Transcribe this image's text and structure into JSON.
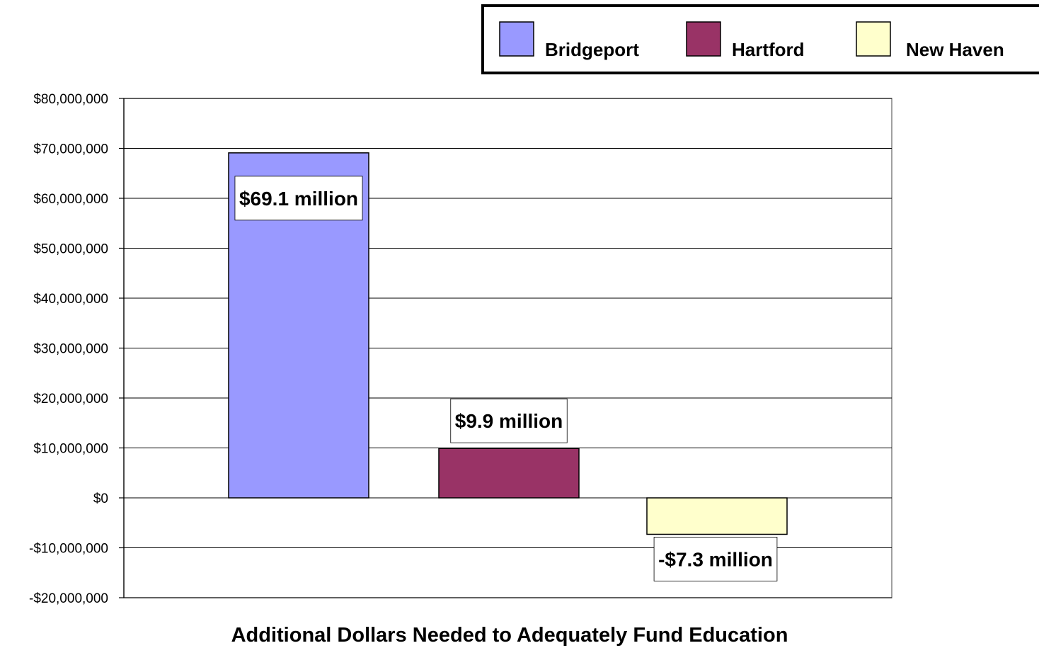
{
  "chart_data": {
    "type": "bar",
    "title": "",
    "xlabel": "Additional Dollars Needed to Adequately Fund Education",
    "ylabel": "",
    "ylim": [
      -20000000,
      80000000
    ],
    "yticks": [
      80000000,
      70000000,
      60000000,
      50000000,
      40000000,
      30000000,
      20000000,
      10000000,
      0,
      -10000000,
      -20000000
    ],
    "ytick_labels": [
      "$80,000,000",
      "$70,000,000",
      "$60,000,000",
      "$50,000,000",
      "$40,000,000",
      "$30,000,000",
      "$20,000,000",
      "$10,000,000",
      "$0",
      "-$10,000,000",
      "-$20,000,000"
    ],
    "grid": true,
    "legend_position": "top-right",
    "series": [
      {
        "name": "Bridgeport",
        "value": 69100000,
        "label": "$69.1 million",
        "color": "#9999ff"
      },
      {
        "name": "Hartford",
        "value": 9900000,
        "label": "$9.9 million",
        "color": "#993366"
      },
      {
        "name": "New Haven",
        "value": -7300000,
        "label": "-$7.3 million",
        "color": "#ffffcc"
      }
    ]
  }
}
